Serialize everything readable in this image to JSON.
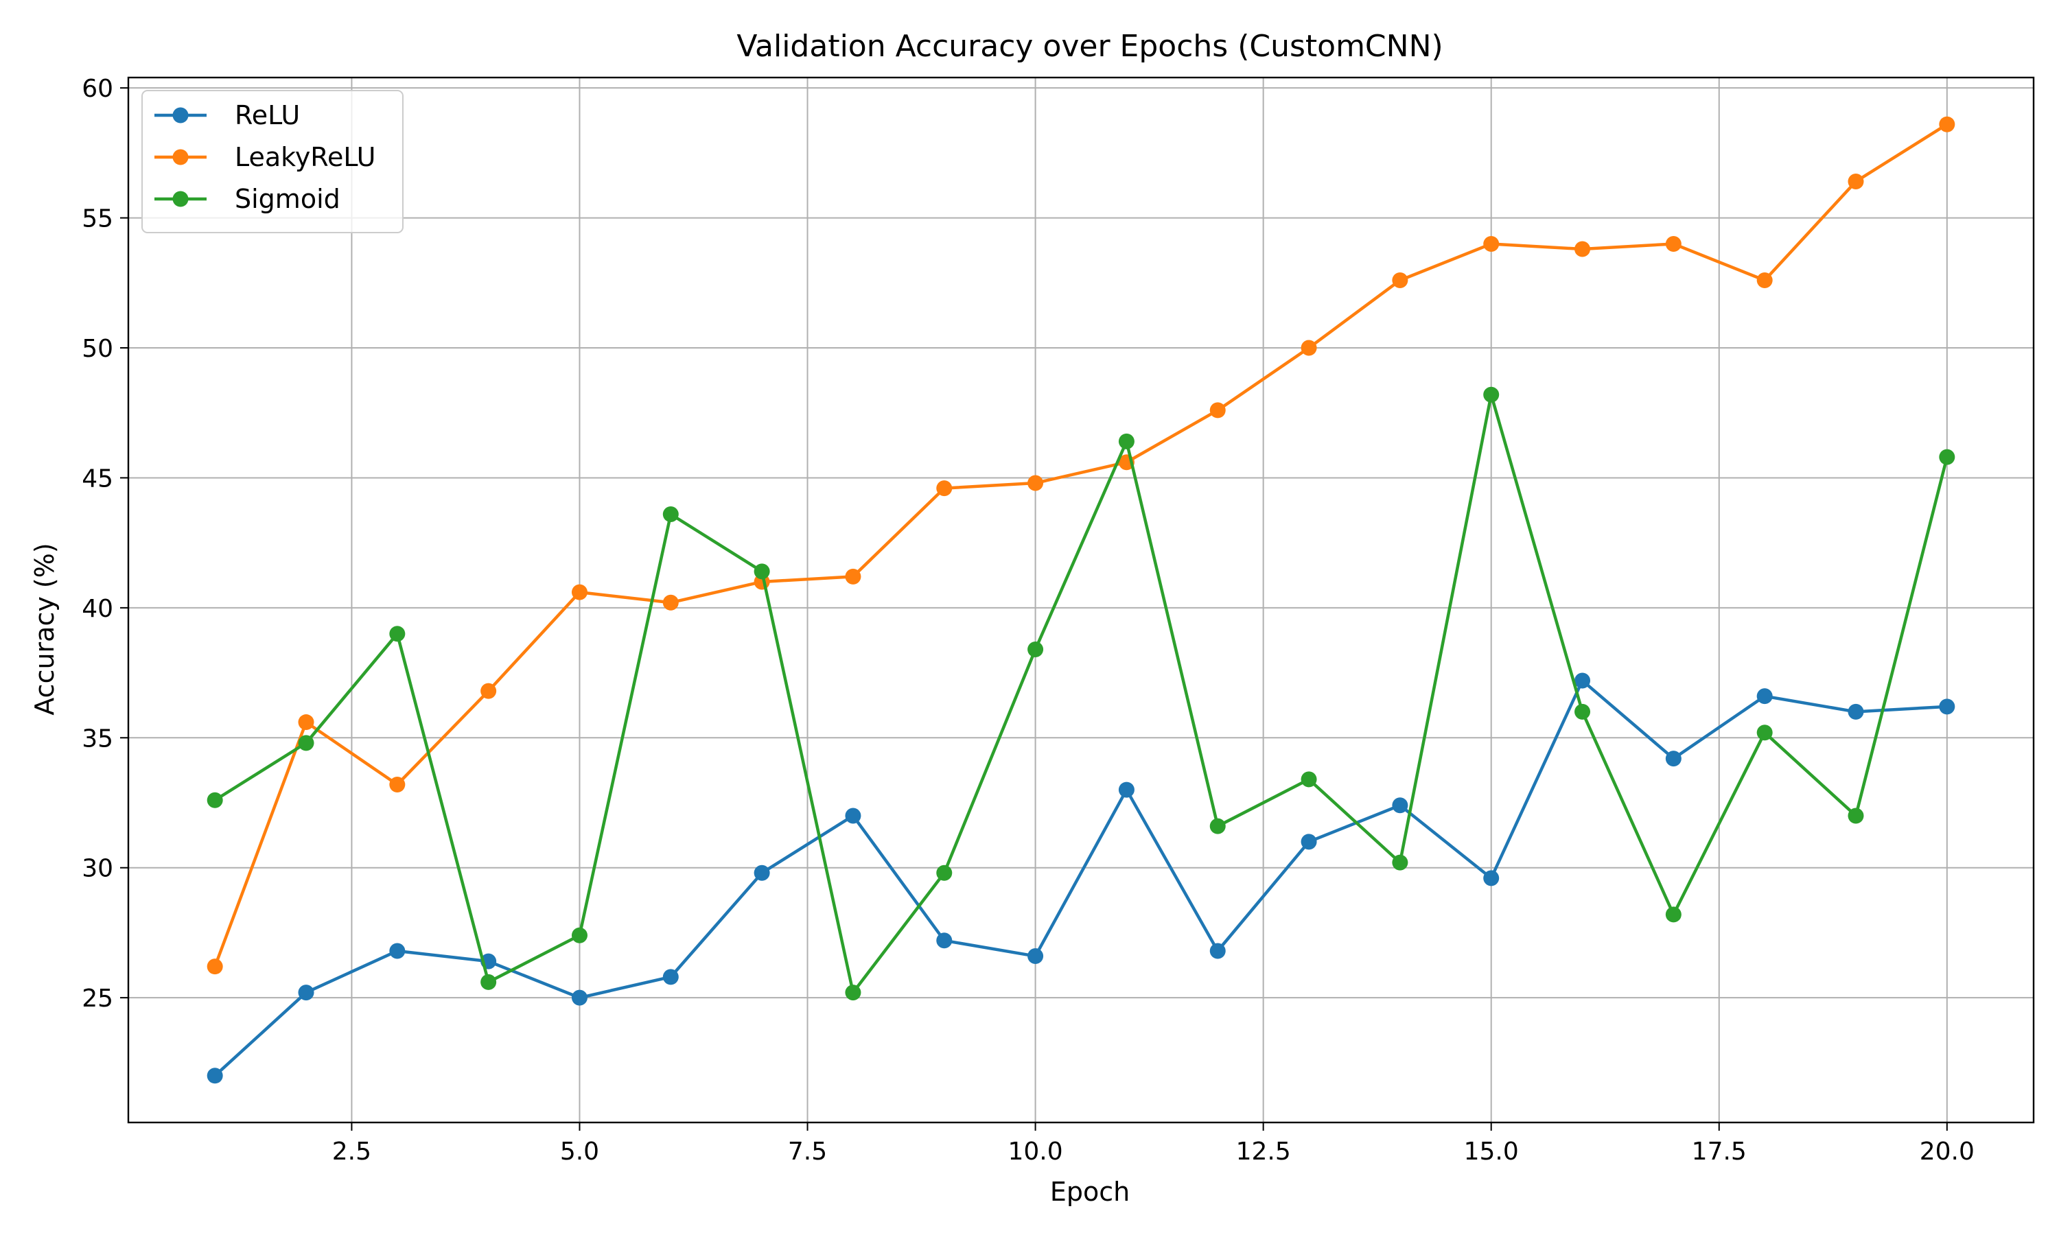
{
  "chart_data": {
    "type": "line",
    "title": "Validation Accuracy over Epochs (CustomCNN)",
    "xlabel": "Epoch",
    "ylabel": "Accuracy (%)",
    "xlim": [
      0.05,
      20.95
    ],
    "ylim": [
      20.2,
      60.4
    ],
    "xticks": [
      2.5,
      5.0,
      7.5,
      10.0,
      12.5,
      15.0,
      17.5,
      20.0
    ],
    "xtick_labels": [
      "2.5",
      "5.0",
      "7.5",
      "10.0",
      "12.5",
      "15.0",
      "17.5",
      "20.0"
    ],
    "yticks": [
      25,
      30,
      35,
      40,
      45,
      50,
      55,
      60
    ],
    "ytick_labels": [
      "25",
      "30",
      "35",
      "40",
      "45",
      "50",
      "55",
      "60"
    ],
    "grid": true,
    "legend_position": "top-left",
    "x": [
      1,
      2,
      3,
      4,
      5,
      6,
      7,
      8,
      9,
      10,
      11,
      12,
      13,
      14,
      15,
      16,
      17,
      18,
      19,
      20
    ],
    "series": [
      {
        "name": "ReLU",
        "color": "#1f77b4",
        "values": [
          22.0,
          25.2,
          26.8,
          26.4,
          25.0,
          25.8,
          29.8,
          32.0,
          27.2,
          26.6,
          33.0,
          26.8,
          31.0,
          32.4,
          29.6,
          37.2,
          34.2,
          36.6,
          36.0,
          36.2
        ]
      },
      {
        "name": "LeakyReLU",
        "color": "#ff7f0e",
        "values": [
          26.2,
          35.6,
          33.2,
          36.8,
          40.6,
          40.2,
          41.0,
          41.2,
          44.6,
          44.8,
          45.6,
          47.6,
          50.0,
          52.6,
          54.0,
          53.8,
          54.0,
          52.6,
          56.4,
          58.6
        ]
      },
      {
        "name": "Sigmoid",
        "color": "#2ca02c",
        "values": [
          32.6,
          34.8,
          39.0,
          25.6,
          27.4,
          43.6,
          41.4,
          25.2,
          29.8,
          38.4,
          46.4,
          31.6,
          33.4,
          30.2,
          48.2,
          36.0,
          28.2,
          35.2,
          32.0,
          45.8
        ]
      }
    ]
  }
}
